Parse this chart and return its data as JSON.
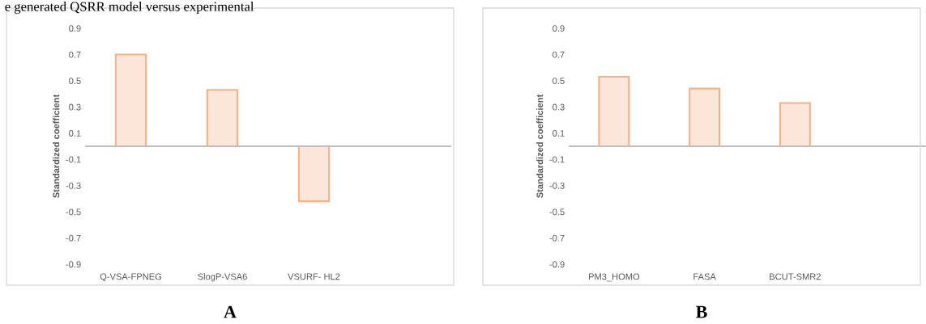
{
  "chart_data": [
    {
      "type": "bar",
      "title": "A",
      "ylabel": "Standardized coefficient",
      "categories": [
        "Q-VSA-FPNEG",
        "SlogP-VSA6",
        "VSURF- HL2",
        null
      ],
      "values": [
        0.7,
        0.43,
        -0.42,
        null
      ],
      "color": "#f4b183",
      "ylim": [
        -0.9,
        0.9
      ],
      "yticks": [
        0.9,
        0.7,
        0.5,
        0.3,
        0.1,
        -0.1,
        -0.3,
        -0.5,
        -0.7,
        -0.9
      ],
      "grid": false,
      "annotations": [
        "e generated QSRR model versus experimental"
      ]
    },
    {
      "type": "bar",
      "title": "B",
      "ylabel": "Standardized coefficient",
      "categories": [
        "PM3_HOMO",
        "FASA",
        "BCUT-SMR2",
        null
      ],
      "values": [
        0.53,
        0.44,
        0.33,
        null
      ],
      "color": "#f4b183",
      "ylim": [
        -0.9,
        0.9
      ],
      "yticks": [
        0.9,
        0.7,
        0.5,
        0.3,
        0.1,
        -0.1,
        -0.3,
        -0.5,
        -0.7,
        -0.9
      ],
      "grid": false
    }
  ]
}
